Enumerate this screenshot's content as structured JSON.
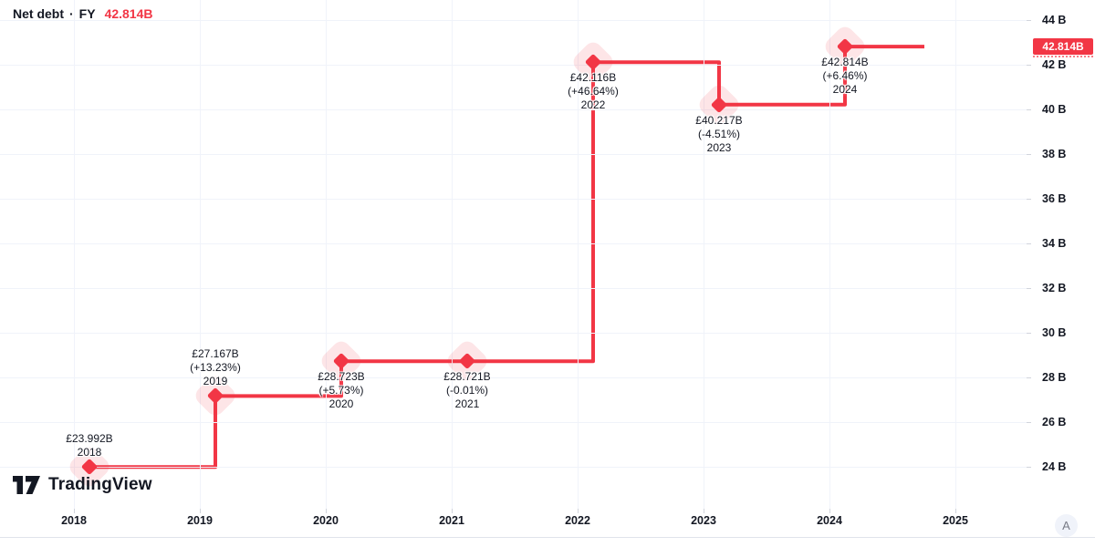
{
  "colors": {
    "accent_red": "#F23645",
    "halo_pink": "rgba(242,54,69,0.13)",
    "text_dark": "#131722",
    "grid": "#F0F3FA",
    "muted_gray": "#787B86",
    "separator": "#E0E3EB"
  },
  "header": {
    "title": "Net debt",
    "separator": "·",
    "period": "FY",
    "current_value": "42.814B"
  },
  "chart_data": {
    "type": "line",
    "style": "step",
    "title": "Net debt · FY",
    "currency_symbol": "£",
    "unit": "B",
    "grid": true,
    "legend_position": "none",
    "x": [
      2018,
      2019,
      2020,
      2021,
      2022,
      2023,
      2024
    ],
    "values": [
      23.992,
      27.167,
      28.723,
      28.721,
      42.116,
      40.217,
      42.814
    ],
    "points": [
      {
        "year": "2018",
        "value": 23.992,
        "value_label": "£23.992B",
        "change_label": "",
        "label_position": "above"
      },
      {
        "year": "2019",
        "value": 27.167,
        "value_label": "£27.167B",
        "change_label": "(+13.23%)",
        "label_position": "above"
      },
      {
        "year": "2020",
        "value": 28.723,
        "value_label": "£28.723B",
        "change_label": "(+5.73%)",
        "label_position": "below"
      },
      {
        "year": "2021",
        "value": 28.721,
        "value_label": "£28.721B",
        "change_label": "(-0.01%)",
        "label_position": "below"
      },
      {
        "year": "2022",
        "value": 42.116,
        "value_label": "£42.116B",
        "change_label": "(+46.64%)",
        "label_position": "below"
      },
      {
        "year": "2023",
        "value": 40.217,
        "value_label": "£40.217B",
        "change_label": "(-4.51%)",
        "label_position": "below"
      },
      {
        "year": "2024",
        "value": 42.814,
        "value_label": "£42.814B",
        "change_label": "(+6.46%)",
        "label_position": "below"
      }
    ],
    "x_ticks": [
      "2018",
      "2019",
      "2020",
      "2021",
      "2022",
      "2023",
      "2024",
      "2025"
    ],
    "y_ticks": [
      {
        "value": 44,
        "label": "44 B"
      },
      {
        "value": 42,
        "label": "42 B"
      },
      {
        "value": 40,
        "label": "40 B"
      },
      {
        "value": 38,
        "label": "38 B"
      },
      {
        "value": 36,
        "label": "36 B"
      },
      {
        "value": 34,
        "label": "34 B"
      },
      {
        "value": 32,
        "label": "32 B"
      },
      {
        "value": 30,
        "label": "30 B"
      },
      {
        "value": 28,
        "label": "28 B"
      },
      {
        "value": 26,
        "label": "26 B"
      },
      {
        "value": 24,
        "label": "24 B"
      }
    ],
    "y_range": [
      22.1,
      44.9
    ],
    "price_line_value": 42.814,
    "price_badge_label": "42.814B"
  },
  "watermark": {
    "brand": "TradingView"
  },
  "toolbar": {
    "auto_button_label": "A"
  }
}
